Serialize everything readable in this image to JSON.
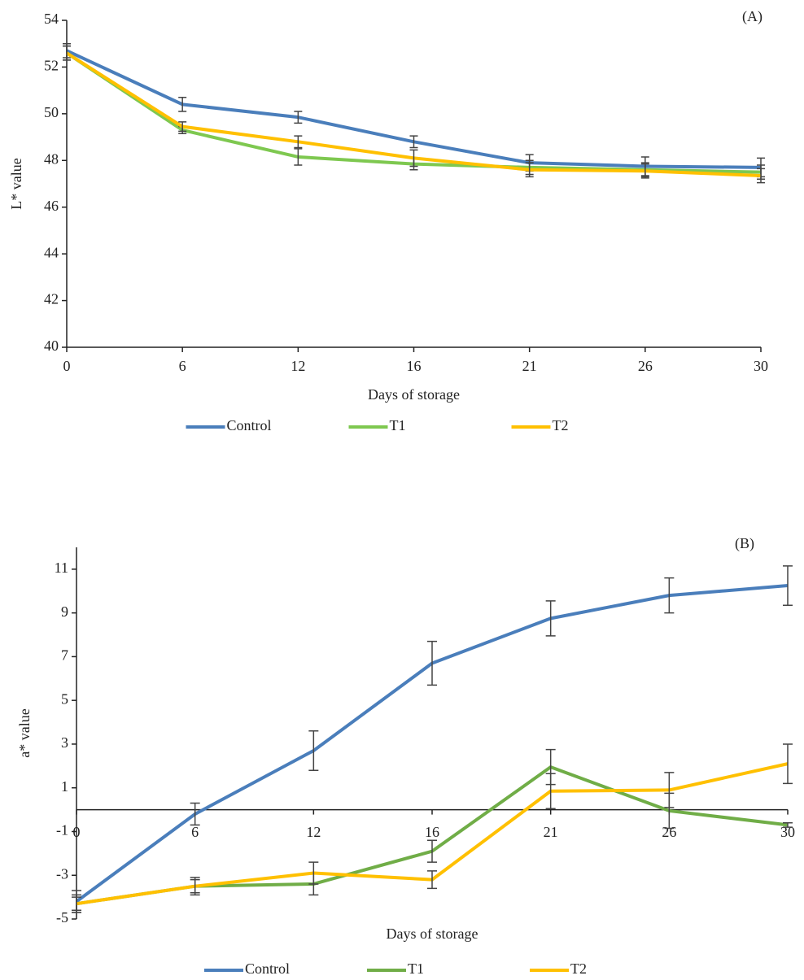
{
  "chart_data": [
    {
      "type": "line",
      "label": "(A)",
      "x_label": "Days of storage",
      "y_label": "L* value",
      "categories": [
        "0",
        "6",
        "12",
        "16",
        "21",
        "26",
        "30"
      ],
      "ylim": [
        40,
        54
      ],
      "yticks": [
        40,
        42,
        44,
        46,
        48,
        50,
        52,
        54
      ],
      "legend": "bottom",
      "series": [
        {
          "name": "Control",
          "color": "#4a7ebb",
          "values": [
            52.7,
            50.4,
            49.85,
            48.8,
            47.9,
            47.75,
            47.7
          ],
          "errors": [
            0.3,
            0.3,
            0.25,
            0.25,
            0.35,
            0.4,
            0.4
          ]
        },
        {
          "name": "T1",
          "color": "#7ec850",
          "values": [
            52.6,
            49.3,
            48.15,
            47.85,
            47.7,
            47.6,
            47.5
          ],
          "errors": [
            0.3,
            0.15,
            0.35,
            0.25,
            0.3,
            0.3,
            0.3
          ]
        },
        {
          "name": "T2",
          "color": "#ffc000",
          "values": [
            52.6,
            49.45,
            48.8,
            48.1,
            47.6,
            47.55,
            47.35
          ],
          "errors": [
            0.3,
            0.2,
            0.25,
            0.35,
            0.3,
            0.3,
            0.3
          ]
        }
      ]
    },
    {
      "type": "line",
      "label": "(B)",
      "x_label": "Days of storage",
      "y_label": "a* value",
      "categories": [
        "0",
        "6",
        "12",
        "16",
        "21",
        "26",
        "30"
      ],
      "ylim": [
        -5,
        12
      ],
      "yticks": [
        -5,
        -3,
        -1,
        1,
        3,
        5,
        7,
        9,
        11
      ],
      "legend": "bottom",
      "series": [
        {
          "name": "Control",
          "color": "#4a7ebb",
          "values": [
            -4.2,
            -0.2,
            2.7,
            6.7,
            8.75,
            9.8,
            10.25
          ],
          "errors": [
            0.5,
            0.5,
            0.9,
            1.0,
            0.8,
            0.8,
            0.9
          ]
        },
        {
          "name": "T1",
          "color": "#70ad47",
          "values": [
            -4.3,
            -3.5,
            -3.4,
            -1.9,
            1.95,
            -0.05,
            -0.7
          ],
          "errors": [
            0.4,
            0.4,
            0.5,
            0.5,
            0.8,
            0.8,
            0.1
          ]
        },
        {
          "name": "T2",
          "color": "#ffc000",
          "values": [
            -4.3,
            -3.5,
            -2.9,
            -3.2,
            0.85,
            0.9,
            2.1
          ],
          "errors": [
            0.3,
            0.3,
            0.5,
            0.4,
            0.8,
            0.8,
            0.9
          ]
        }
      ]
    }
  ]
}
